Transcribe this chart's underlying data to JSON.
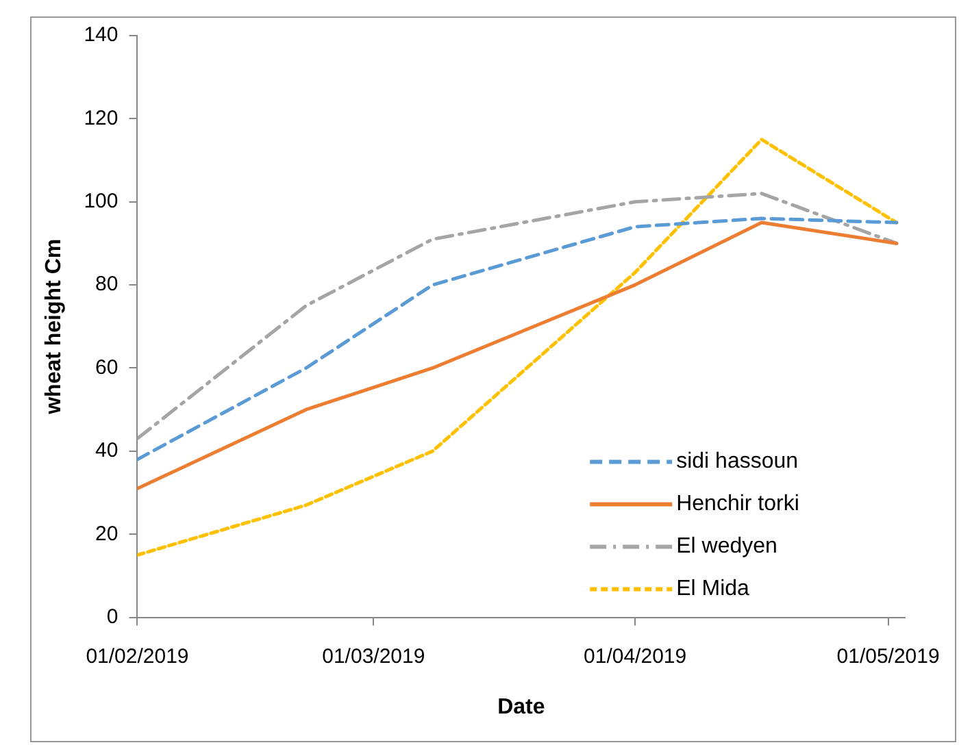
{
  "chart_data": {
    "type": "line",
    "xlabel": "Date",
    "ylabel": "wheat height Cm",
    "x": [
      "2019-02-01",
      "2019-02-21",
      "2019-03-08",
      "2019-04-01",
      "2019-04-16",
      "2019-05-02"
    ],
    "xlim": [
      "2019-02-01",
      "2019-05-03"
    ],
    "xticks": [
      {
        "value": "2019-02-01",
        "label": "01/02/2019"
      },
      {
        "value": "2019-03-01",
        "label": "01/03/2019"
      },
      {
        "value": "2019-04-01",
        "label": "01/04/2019"
      },
      {
        "value": "2019-05-01",
        "label": "01/05/2019"
      }
    ],
    "ylim": [
      0,
      140
    ],
    "yticks": [
      0,
      20,
      40,
      60,
      80,
      100,
      120,
      140
    ],
    "grid": false,
    "legend": "bottom right",
    "marker": "none",
    "series": [
      {
        "name": "sidi hassoun",
        "color": "#5b9bd5",
        "line_style": "dashed",
        "values": [
          38,
          60,
          80,
          94,
          96,
          95
        ]
      },
      {
        "name": "Henchir torki",
        "color": "#ed7d31",
        "line_style": "solid",
        "values": [
          31,
          50,
          60,
          80,
          95,
          90
        ]
      },
      {
        "name": "El wedyen",
        "color": "#a5a5a5",
        "line_style": "dashdot",
        "values": [
          43,
          75,
          91,
          100,
          102,
          90
        ]
      },
      {
        "name": "El Mida",
        "color": "#ffc000",
        "line_style": "dotted",
        "values": [
          15,
          27,
          40,
          83,
          115,
          95
        ]
      }
    ]
  }
}
